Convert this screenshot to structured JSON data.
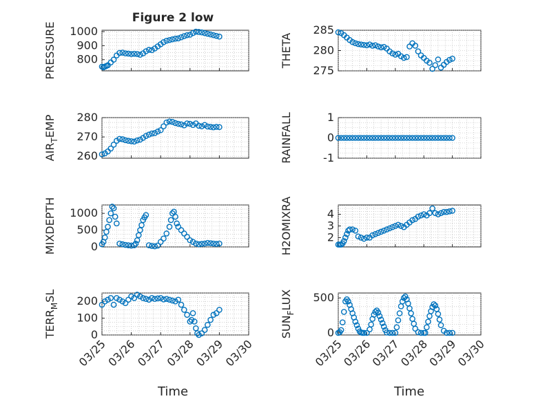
{
  "figure": {
    "title": "Figure 2 low",
    "xlabel": "Time",
    "x_tick_labels": [
      "03/25",
      "03/26",
      "03/27",
      "03/28",
      "03/29",
      "03/30"
    ]
  },
  "chart_data": [
    {
      "type": "scatter",
      "ylabel": "PRESSURE",
      "title": "Figure 2 low",
      "color": "#0072BD",
      "grid": true,
      "xlim": [
        0,
        5
      ],
      "ylim": [
        720,
        1010
      ],
      "yticks": [
        800,
        900,
        1000
      ],
      "x": [
        0,
        0.05,
        0.1,
        0.15,
        0.2,
        0.3,
        0.4,
        0.5,
        0.6,
        0.7,
        0.8,
        0.9,
        1.0,
        1.1,
        1.2,
        1.3,
        1.4,
        1.5,
        1.6,
        1.7,
        1.8,
        1.9,
        2.0,
        2.1,
        2.2,
        2.3,
        2.4,
        2.5,
        2.6,
        2.7,
        2.8,
        2.9,
        3.0,
        3.1,
        3.2,
        3.3,
        3.4,
        3.5,
        3.6,
        3.7,
        3.8,
        3.9,
        4.0
      ],
      "y": [
        750,
        745,
        750,
        755,
        760,
        780,
        800,
        830,
        848,
        850,
        845,
        843,
        840,
        842,
        840,
        835,
        845,
        860,
        870,
        868,
        880,
        895,
        910,
        925,
        935,
        940,
        945,
        950,
        952,
        960,
        968,
        975,
        978,
        990,
        1000,
        998,
        995,
        990,
        985,
        980,
        975,
        970,
        965
      ]
    },
    {
      "type": "scatter",
      "ylabel": "THETA",
      "color": "#0072BD",
      "grid": true,
      "xlim": [
        0,
        5
      ],
      "ylim": [
        275,
        285
      ],
      "yticks": [
        275,
        280,
        285
      ],
      "x": [
        0,
        0.1,
        0.2,
        0.3,
        0.4,
        0.5,
        0.6,
        0.7,
        0.8,
        0.9,
        1.0,
        1.1,
        1.2,
        1.3,
        1.4,
        1.5,
        1.6,
        1.7,
        1.8,
        1.9,
        2.0,
        2.1,
        2.2,
        2.3,
        2.4,
        2.5,
        2.6,
        2.7,
        2.8,
        2.9,
        3.0,
        3.1,
        3.2,
        3.3,
        3.4,
        3.5,
        3.6,
        3.7,
        3.8,
        3.9,
        4.0
      ],
      "y": [
        284.5,
        284.3,
        283.8,
        283.2,
        282.6,
        282.1,
        281.8,
        281.6,
        281.5,
        281.4,
        281.3,
        281.5,
        281.2,
        281.3,
        281.0,
        280.8,
        280.9,
        280.5,
        279.8,
        279.3,
        279.0,
        279.2,
        278.6,
        278.2,
        278.4,
        281.0,
        281.8,
        281.2,
        279.8,
        278.8,
        278.2,
        277.5,
        277.0,
        275.5,
        276.4,
        277.8,
        275.8,
        276.5,
        277.2,
        277.7,
        278.0
      ]
    },
    {
      "type": "scatter",
      "ylabel": "AIR_TEMP",
      "color": "#0072BD",
      "grid": true,
      "xlim": [
        0,
        5
      ],
      "ylim": [
        259,
        280
      ],
      "yticks": [
        260,
        270,
        280
      ],
      "x": [
        0,
        0.1,
        0.2,
        0.3,
        0.4,
        0.5,
        0.6,
        0.7,
        0.8,
        0.9,
        1.0,
        1.1,
        1.2,
        1.3,
        1.4,
        1.5,
        1.6,
        1.7,
        1.8,
        1.9,
        2.0,
        2.1,
        2.2,
        2.3,
        2.4,
        2.5,
        2.6,
        2.7,
        2.8,
        2.9,
        3.0,
        3.1,
        3.2,
        3.3,
        3.4,
        3.5,
        3.6,
        3.7,
        3.8,
        3.9,
        4.0
      ],
      "y": [
        261,
        261.5,
        262.5,
        264,
        266,
        268,
        269,
        268.8,
        268.3,
        268.0,
        267.8,
        267.6,
        268.2,
        268.6,
        269.5,
        270.5,
        271.2,
        271.8,
        272.0,
        272.8,
        273.5,
        275.5,
        277.5,
        278,
        277.8,
        277.2,
        276.8,
        276.5,
        276.0,
        277.0,
        276.8,
        276.2,
        277.0,
        275.8,
        275.5,
        276.2,
        275.4,
        275.2,
        275.0,
        275.2,
        275.1
      ]
    },
    {
      "type": "scatter",
      "ylabel": "RAINFALL",
      "color": "#0072BD",
      "grid": true,
      "xlim": [
        0,
        5
      ],
      "ylim": [
        -1,
        1
      ],
      "yticks": [
        -1,
        0,
        1
      ],
      "x": [
        0,
        0.1,
        0.2,
        0.3,
        0.4,
        0.5,
        0.6,
        0.7,
        0.8,
        0.9,
        1.0,
        1.1,
        1.2,
        1.3,
        1.4,
        1.5,
        1.6,
        1.7,
        1.8,
        1.9,
        2.0,
        2.1,
        2.2,
        2.3,
        2.4,
        2.5,
        2.6,
        2.7,
        2.8,
        2.9,
        3.0,
        3.1,
        3.2,
        3.3,
        3.4,
        3.5,
        3.6,
        3.7,
        3.8,
        3.9,
        4.0
      ],
      "y": [
        0,
        0,
        0,
        0,
        0,
        0,
        0,
        0,
        0,
        0,
        0,
        0,
        0,
        0,
        0,
        0,
        0,
        0,
        0,
        0,
        0,
        0,
        0,
        0,
        0,
        0,
        0,
        0,
        0,
        0,
        0,
        0,
        0,
        0,
        0,
        0,
        0,
        0,
        0,
        0,
        0
      ]
    },
    {
      "type": "scatter",
      "ylabel": "MIXDEPTH",
      "color": "#0072BD",
      "grid": true,
      "xlim": [
        0,
        5
      ],
      "ylim": [
        0,
        1250
      ],
      "yticks": [
        0,
        500,
        1000
      ],
      "x": [
        0,
        0.05,
        0.1,
        0.15,
        0.2,
        0.25,
        0.3,
        0.35,
        0.4,
        0.45,
        0.5,
        0.6,
        0.7,
        0.8,
        0.9,
        1.0,
        1.1,
        1.15,
        1.2,
        1.25,
        1.3,
        1.35,
        1.4,
        1.45,
        1.5,
        1.6,
        1.7,
        1.8,
        1.9,
        2.0,
        2.1,
        2.2,
        2.3,
        2.35,
        2.4,
        2.45,
        2.5,
        2.55,
        2.6,
        2.7,
        2.8,
        2.9,
        3.0,
        3.1,
        3.2,
        3.3,
        3.4,
        3.5,
        3.6,
        3.7,
        3.8,
        3.9,
        4.0
      ],
      "y": [
        80,
        150,
        280,
        450,
        600,
        800,
        1000,
        1200,
        1150,
        900,
        700,
        100,
        80,
        60,
        50,
        40,
        50,
        100,
        200,
        350,
        500,
        650,
        800,
        880,
        950,
        50,
        30,
        20,
        40,
        150,
        250,
        400,
        600,
        800,
        1000,
        1050,
        900,
        700,
        600,
        500,
        400,
        300,
        200,
        150,
        100,
        80,
        90,
        100,
        120,
        110,
        100,
        90,
        100
      ]
    },
    {
      "type": "scatter",
      "ylabel": "H2OMIXRA",
      "color": "#0072BD",
      "grid": true,
      "xlim": [
        0,
        5
      ],
      "ylim": [
        1.2,
        4.8
      ],
      "yticks": [
        2,
        3,
        4
      ],
      "x": [
        0,
        0.05,
        0.1,
        0.15,
        0.2,
        0.25,
        0.3,
        0.35,
        0.4,
        0.5,
        0.6,
        0.7,
        0.8,
        0.9,
        1.0,
        1.1,
        1.2,
        1.3,
        1.4,
        1.5,
        1.6,
        1.7,
        1.8,
        1.9,
        2.0,
        2.1,
        2.2,
        2.3,
        2.4,
        2.5,
        2.6,
        2.7,
        2.8,
        2.9,
        3.0,
        3.1,
        3.2,
        3.3,
        3.4,
        3.5,
        3.6,
        3.7,
        3.8,
        3.9,
        4.0
      ],
      "y": [
        1.4,
        1.4,
        1.4,
        1.5,
        1.7,
        2.0,
        2.3,
        2.6,
        2.7,
        2.7,
        2.6,
        2.1,
        2.0,
        1.9,
        2.0,
        2.0,
        2.2,
        2.3,
        2.4,
        2.5,
        2.6,
        2.7,
        2.8,
        2.9,
        3.0,
        3.1,
        3.0,
        2.9,
        3.1,
        3.3,
        3.5,
        3.6,
        3.8,
        3.9,
        4.0,
        3.9,
        4.1,
        4.5,
        4.1,
        4.0,
        4.1,
        4.2,
        4.2,
        4.25,
        4.3
      ]
    },
    {
      "type": "scatter",
      "ylabel": "TERR_MSL",
      "color": "#0072BD",
      "grid": true,
      "xlim": [
        0,
        5
      ],
      "ylim": [
        0,
        250
      ],
      "yticks": [
        0,
        100,
        200
      ],
      "x": [
        0,
        0.1,
        0.2,
        0.3,
        0.4,
        0.5,
        0.6,
        0.7,
        0.8,
        0.9,
        1.0,
        1.1,
        1.2,
        1.3,
        1.4,
        1.5,
        1.6,
        1.7,
        1.8,
        1.9,
        2.0,
        2.1,
        2.2,
        2.3,
        2.4,
        2.5,
        2.6,
        2.7,
        2.8,
        2.9,
        3.0,
        3.05,
        3.1,
        3.15,
        3.2,
        3.25,
        3.3,
        3.4,
        3.5,
        3.6,
        3.7,
        3.8,
        3.9,
        4.0
      ],
      "y": [
        180,
        200,
        210,
        220,
        180,
        220,
        210,
        200,
        190,
        210,
        230,
        220,
        240,
        230,
        220,
        215,
        210,
        220,
        215,
        218,
        220,
        212,
        215,
        210,
        205,
        200,
        210,
        180,
        150,
        120,
        80,
        90,
        130,
        80,
        40,
        10,
        0,
        10,
        30,
        60,
        90,
        120,
        130,
        150
      ]
    },
    {
      "type": "scatter",
      "ylabel": "SUN_FLUX",
      "color": "#0072BD",
      "grid": true,
      "xlim": [
        0,
        5
      ],
      "ylim": [
        -30,
        570
      ],
      "yticks": [
        0,
        500
      ],
      "x": [
        0,
        0.05,
        0.1,
        0.15,
        0.2,
        0.25,
        0.3,
        0.35,
        0.4,
        0.45,
        0.5,
        0.55,
        0.6,
        0.65,
        0.7,
        0.75,
        0.8,
        0.85,
        0.9,
        1.0,
        1.1,
        1.15,
        1.2,
        1.25,
        1.3,
        1.35,
        1.4,
        1.45,
        1.5,
        1.55,
        1.6,
        1.65,
        1.7,
        1.8,
        1.9,
        2.0,
        2.05,
        2.1,
        2.15,
        2.2,
        2.25,
        2.3,
        2.35,
        2.4,
        2.45,
        2.5,
        2.55,
        2.6,
        2.65,
        2.7,
        2.8,
        2.9,
        3.0,
        3.05,
        3.1,
        3.15,
        3.2,
        3.25,
        3.3,
        3.35,
        3.4,
        3.45,
        3.5,
        3.55,
        3.6,
        3.7,
        3.8,
        3.9,
        4.0
      ],
      "y": [
        0,
        10,
        40,
        150,
        300,
        450,
        480,
        450,
        400,
        340,
        280,
        220,
        160,
        110,
        60,
        20,
        5,
        0,
        0,
        0,
        50,
        120,
        200,
        260,
        300,
        320,
        290,
        240,
        190,
        140,
        90,
        40,
        5,
        0,
        0,
        0,
        80,
        180,
        280,
        380,
        450,
        500,
        520,
        480,
        420,
        350,
        280,
        200,
        130,
        60,
        10,
        0,
        0,
        0,
        80,
        160,
        240,
        310,
        370,
        410,
        390,
        340,
        270,
        190,
        110,
        30,
        0,
        0,
        0
      ]
    }
  ]
}
